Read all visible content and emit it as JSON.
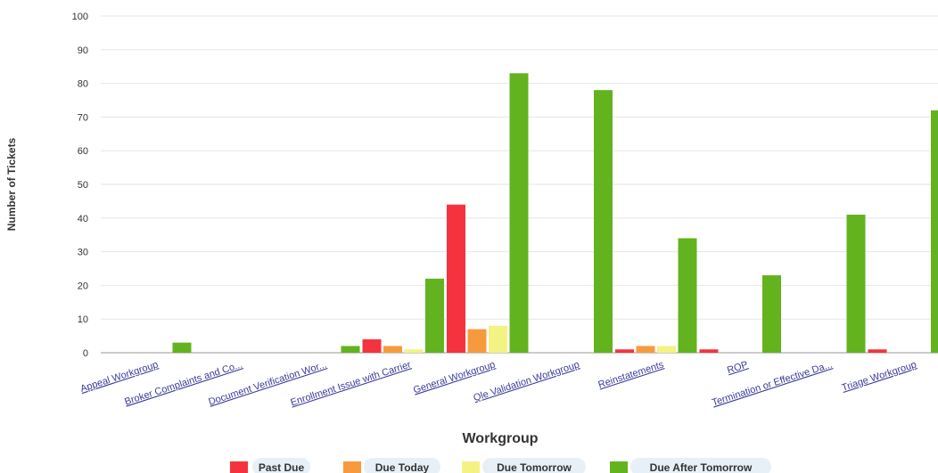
{
  "chart_data": {
    "type": "bar",
    "xlabel": "Workgroup",
    "ylabel": "Number of Tickets",
    "ylim": [
      0,
      100
    ],
    "yticks": [
      0,
      10,
      20,
      30,
      40,
      50,
      60,
      70,
      80,
      90,
      100
    ],
    "grid": true,
    "legend_position": "bottom",
    "categories": [
      "Appeal Workgroup",
      "Broker Complaints and Co...",
      "Document Verification Wor...",
      "Enrollment Issue with Carrier",
      "General Workgroup",
      "Qle Validation Workgroup",
      "Reinstatements",
      "ROP",
      "Termination or Effective Da...",
      "Triage Workgroup"
    ],
    "series": [
      {
        "name": "Past Due",
        "color": "#f5333f",
        "values": [
          0,
          0,
          0,
          4,
          44,
          0,
          1,
          1,
          0,
          1
        ]
      },
      {
        "name": "Due Today",
        "color": "#f79a3e",
        "values": [
          0,
          0,
          0,
          2,
          7,
          0,
          2,
          0,
          0,
          0
        ]
      },
      {
        "name": "Due Tomorrow",
        "color": "#f4f283",
        "values": [
          0,
          0,
          0,
          1,
          8,
          0,
          2,
          0,
          0,
          0
        ]
      },
      {
        "name": "Due After Tomorrow",
        "color": "#62b31e",
        "values": [
          3,
          0,
          2,
          22,
          83,
          78,
          34,
          23,
          41,
          72
        ]
      }
    ],
    "last_category_partial_values": [
      1,
      0,
      0,
      72
    ]
  }
}
